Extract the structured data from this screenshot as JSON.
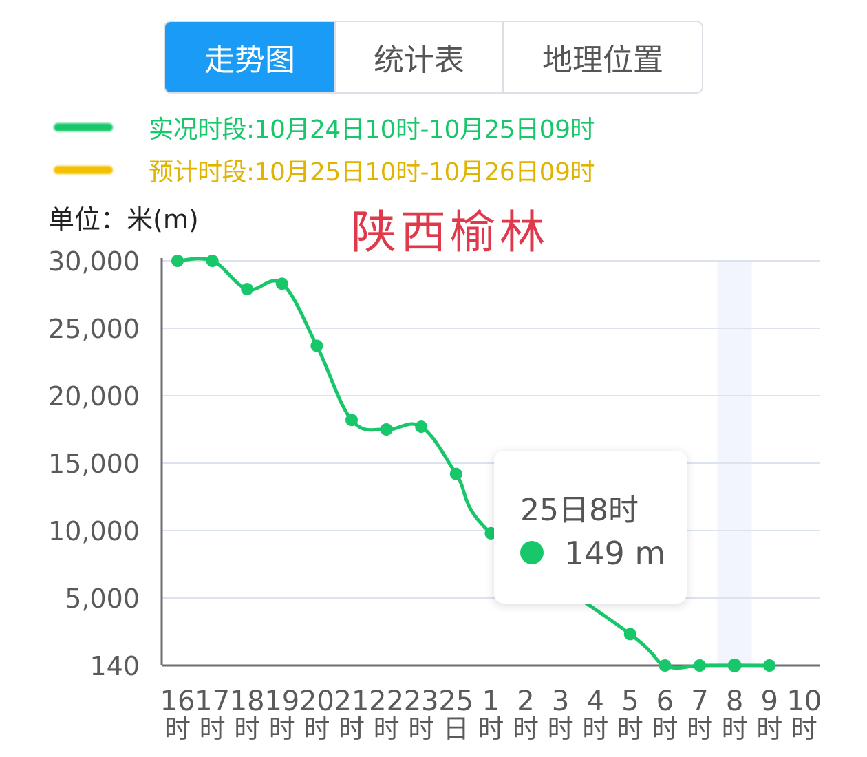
{
  "tabs": [
    {
      "label": "走势图",
      "active": true
    },
    {
      "label": "统计表",
      "active": false
    },
    {
      "label": "地理位置",
      "active": false
    }
  ],
  "legend": {
    "observed": {
      "text": "实况时段:10月24日10时-10月25日09时",
      "color": "#19c76b"
    },
    "forecast": {
      "text": "预计时段:10月25日10时-10月26日09时",
      "color": "#f5c000"
    }
  },
  "unit_label": "单位：米(m)",
  "location_title": "陕西榆林",
  "tooltip": {
    "time": "25日8时",
    "value": "149 m"
  },
  "chart_data": {
    "type": "line",
    "y_ticks": [
      "30,000",
      "25,000",
      "20,000",
      "15,000",
      "10,000",
      "5,000",
      "140"
    ],
    "y_tick_values": [
      30000,
      25000,
      20000,
      15000,
      10000,
      5000,
      140
    ],
    "x_tick_labels": [
      [
        "16",
        "时"
      ],
      [
        "17",
        "时"
      ],
      [
        "18",
        "时"
      ],
      [
        "19",
        "时"
      ],
      [
        "20",
        "时"
      ],
      [
        "21",
        "时"
      ],
      [
        "22",
        "时"
      ],
      [
        "23",
        "时"
      ],
      [
        "25",
        "日"
      ],
      [
        "1",
        "时"
      ],
      [
        "2",
        "时"
      ],
      [
        "3",
        "时"
      ],
      [
        "4",
        "时"
      ],
      [
        "5",
        "时"
      ],
      [
        "6",
        "时"
      ],
      [
        "7",
        "时"
      ],
      [
        "8",
        "时"
      ],
      [
        "9",
        "时"
      ],
      [
        "10",
        "时"
      ]
    ],
    "series": [
      {
        "color": "#19c76b",
        "values": [
          30000,
          30000,
          27900,
          28300,
          23700,
          18200,
          17500,
          17700,
          14200,
          9800,
          null,
          null,
          null,
          2400,
          140,
          140,
          149,
          140
        ]
      }
    ],
    "highlight_index": 16,
    "grid": true,
    "colors": {
      "grid": "#dde3ee",
      "axis": "#6e6e6e",
      "highlight_band": "#f2f5fb",
      "tick_text": "#5a5a5a"
    }
  }
}
